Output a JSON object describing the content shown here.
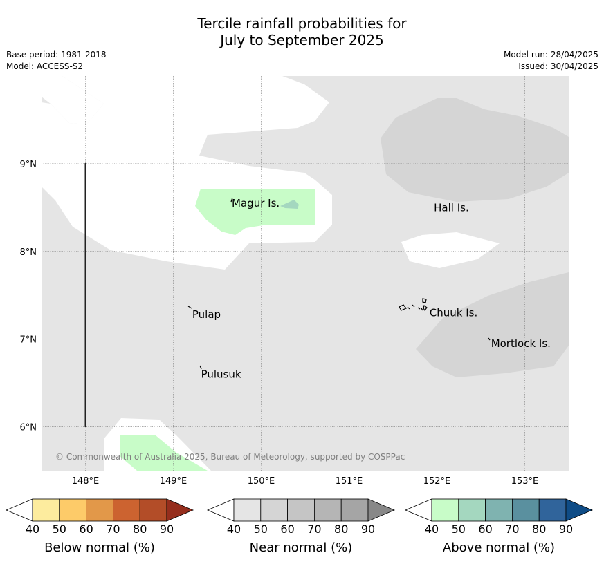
{
  "title": {
    "line1": "Tercile rainfall probabilities for",
    "line2": "July to September 2025"
  },
  "meta": {
    "base_period": "Base period: 1981-2018",
    "model": "Model: ACCESS-S2",
    "model_run": "Model run: 28/04/2025",
    "issued": "Issued: 30/04/2025"
  },
  "map": {
    "longitude_range": [
      147.5,
      153.5
    ],
    "latitude_range": [
      5.5,
      10.0
    ],
    "lon_ticks": [
      "148°E",
      "149°E",
      "150°E",
      "151°E",
      "152°E",
      "153°E"
    ],
    "lat_ticks": [
      "9°N",
      "8°N",
      "7°N",
      "6°N"
    ],
    "places": [
      {
        "name": "Magur Is.",
        "lon": 149.65,
        "lat": 8.55
      },
      {
        "name": "Hall Is.",
        "lon": 151.95,
        "lat": 8.5
      },
      {
        "name": "Pulap",
        "lon": 149.2,
        "lat": 7.28
      },
      {
        "name": "Chuuk Is.",
        "lon": 151.9,
        "lat": 7.3
      },
      {
        "name": "Mortlock Is.",
        "lon": 152.6,
        "lat": 6.95
      },
      {
        "name": "Pulusuk",
        "lon": 149.3,
        "lat": 6.6
      }
    ],
    "copyright": "© Commonwealth of Australia 2025, Bureau of Meteorology, supported by COSPPac",
    "colors": {
      "ocean_white": "#ffffff",
      "near_normal_40": "#e5e5e5",
      "near_normal_50": "#d5d5d5",
      "above_normal_40": "#c8fcc8",
      "above_normal_50": "#a4d7bf"
    }
  },
  "colorbars": [
    {
      "label": "Below normal (%)",
      "ticks": [
        "40",
        "50",
        "60",
        "70",
        "80",
        "90"
      ],
      "colors": [
        "#fdec9e",
        "#fdcb69",
        "#e29849",
        "#cc6330",
        "#b34d28",
        "#952e1d"
      ]
    },
    {
      "label": "Near normal (%)",
      "ticks": [
        "40",
        "50",
        "60",
        "70",
        "80",
        "90"
      ],
      "colors": [
        "#e5e5e5",
        "#d5d5d5",
        "#c5c5c5",
        "#b5b5b5",
        "#a5a5a5",
        "#888888"
      ]
    },
    {
      "label": "Above normal (%)",
      "ticks": [
        "40",
        "50",
        "60",
        "70",
        "80",
        "90"
      ],
      "colors": [
        "#c8fcc8",
        "#a4d7bf",
        "#7fb3b0",
        "#5a909f",
        "#30649b",
        "#0f4c86"
      ]
    }
  ]
}
